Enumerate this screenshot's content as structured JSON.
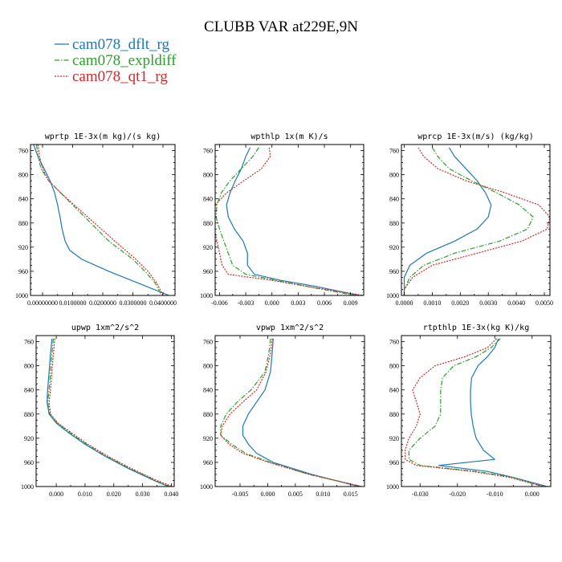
{
  "figure_title": "CLUBB VAR at229E,9N",
  "legend": [
    {
      "name": "cam078_dflt_rg",
      "color": "#1f77b4",
      "dash": "solid"
    },
    {
      "name": "cam078_expldiff",
      "color": "#2ca02c",
      "dash": "dashdot"
    },
    {
      "name": "cam078_qt1_rg",
      "color": "#d62728",
      "dash": "dotted"
    }
  ],
  "chart_data": [
    {
      "type": "line",
      "title": "wprtp  1E-3x(m kg)/(s kg)",
      "xlim": [
        -0.004,
        0.044
      ],
      "ylim": [
        1000,
        750
      ],
      "y_reversed": true,
      "xticks": [
        0,
        0.01,
        0.02,
        0.03,
        0.04
      ],
      "xticklabels": [
        "0.00000000",
        "0.0100000",
        "0.0200000",
        "0.0300000",
        "0.0400000"
      ],
      "yticks": [
        760,
        800,
        840,
        880,
        920,
        960,
        1000
      ],
      "y": [
        750,
        770,
        790,
        810,
        830,
        850,
        870,
        890,
        910,
        925,
        940,
        960,
        980,
        1000
      ],
      "series": [
        {
          "name": "cam078_dflt_rg",
          "values": [
            -0.003,
            -0.0015,
            0.0005,
            0.0025,
            0.004,
            0.005,
            0.0058,
            0.0065,
            0.0075,
            0.009,
            0.013,
            0.022,
            0.032,
            0.042
          ]
        },
        {
          "name": "cam078_expldiff",
          "values": [
            -0.002,
            -0.0015,
            -0.0005,
            0.002,
            0.006,
            0.01,
            0.014,
            0.018,
            0.022,
            0.026,
            0.03,
            0.034,
            0.0375,
            0.0395
          ]
        },
        {
          "name": "cam078_qt1_rg",
          "values": [
            -0.0015,
            -0.001,
            0.0,
            0.002,
            0.006,
            0.0105,
            0.015,
            0.0195,
            0.024,
            0.0275,
            0.031,
            0.035,
            0.038,
            0.04
          ]
        }
      ]
    },
    {
      "type": "line",
      "title": "wpthlp  1x(m K)/s",
      "xlim": [
        -0.0065,
        0.0105
      ],
      "ylim": [
        1000,
        750
      ],
      "y_reversed": true,
      "xticks": [
        -0.006,
        -0.003,
        0,
        0.003,
        0.006,
        0.009
      ],
      "xticklabels": [
        "-0.006",
        "-0.003",
        "0.000",
        "0.003",
        "0.006",
        "0.009"
      ],
      "yticks": [
        760,
        800,
        840,
        880,
        920,
        960,
        1000
      ],
      "y": [
        755,
        770,
        790,
        810,
        830,
        850,
        870,
        890,
        910,
        930,
        950,
        965,
        975,
        985,
        1000
      ],
      "series": [
        {
          "name": "cam078_dflt_rg",
          "values": [
            -0.0025,
            -0.003,
            -0.0035,
            -0.0042,
            -0.0048,
            -0.0052,
            -0.005,
            -0.0043,
            -0.0033,
            -0.0028,
            -0.0028,
            -0.002,
            0.001,
            0.005,
            0.01
          ]
        },
        {
          "name": "cam078_expldiff",
          "values": [
            -0.0015,
            -0.0022,
            -0.0035,
            -0.0048,
            -0.0058,
            -0.0063,
            -0.0064,
            -0.006,
            -0.0055,
            -0.005,
            -0.0045,
            -0.003,
            0.0005,
            0.004,
            0.0095
          ]
        },
        {
          "name": "cam078_qt1_rg",
          "values": [
            -0.0003,
            -0.0002,
            -0.0012,
            -0.0032,
            -0.0052,
            -0.0065,
            -0.0068,
            -0.0066,
            -0.0063,
            -0.006,
            -0.0057,
            -0.005,
            0.0,
            0.004,
            0.0105
          ]
        }
      ]
    },
    {
      "type": "line",
      "title": "wprcp  1E-3x(m/s) (kg/kg)",
      "xlim": [
        -0.0001,
        0.0052
      ],
      "ylim": [
        1000,
        750
      ],
      "y_reversed": true,
      "xticks": [
        0,
        0.001,
        0.002,
        0.003,
        0.004,
        0.005
      ],
      "xticklabels": [
        "0.0000",
        "0.0010",
        "0.0020",
        "0.0030",
        "0.0040",
        "0.0050"
      ],
      "yticks": [
        760,
        800,
        840,
        880,
        920,
        960,
        1000
      ],
      "y": [
        755,
        770,
        790,
        810,
        830,
        850,
        870,
        890,
        910,
        930,
        950,
        970,
        990,
        1000
      ],
      "series": [
        {
          "name": "cam078_dflt_rg",
          "values": [
            0.0016,
            0.0018,
            0.0022,
            0.0026,
            0.0029,
            0.0031,
            0.003,
            0.0026,
            0.0018,
            0.0008,
            0.0002,
            0.0,
            0.0,
            0.0
          ]
        },
        {
          "name": "cam078_expldiff",
          "values": [
            0.001,
            0.0012,
            0.0016,
            0.0024,
            0.0033,
            0.0041,
            0.0046,
            0.0044,
            0.0034,
            0.0018,
            0.0007,
            0.0002,
            0.0,
            0.0
          ]
        },
        {
          "name": "cam078_qt1_rg",
          "values": [
            0.0005,
            0.0007,
            0.0012,
            0.0022,
            0.0036,
            0.0048,
            0.0052,
            0.0051,
            0.0042,
            0.0026,
            0.001,
            0.0003,
            0.0,
            0.0
          ]
        }
      ]
    },
    {
      "type": "line",
      "title": "upwp  1xm^2/s^2",
      "xlim": [
        -0.007,
        0.041
      ],
      "ylim": [
        1000,
        750
      ],
      "y_reversed": true,
      "xticks": [
        0,
        0.01,
        0.02,
        0.03,
        0.04
      ],
      "xticklabels": [
        "0.000",
        "0.010",
        "0.020",
        "0.030",
        "0.040"
      ],
      "yticks": [
        760,
        800,
        840,
        880,
        920,
        960,
        1000
      ],
      "y": [
        755,
        780,
        810,
        840,
        860,
        880,
        895,
        910,
        930,
        950,
        970,
        990,
        1000
      ],
      "series": [
        {
          "name": "cam078_dflt_rg",
          "values": [
            -0.0015,
            -0.002,
            -0.0025,
            -0.003,
            -0.0032,
            -0.0025,
            0.0,
            0.004,
            0.01,
            0.017,
            0.025,
            0.034,
            0.039
          ]
        },
        {
          "name": "cam078_expldiff",
          "values": [
            -0.001,
            -0.0015,
            -0.002,
            -0.0025,
            -0.003,
            -0.0022,
            0.0003,
            0.0045,
            0.0105,
            0.0175,
            0.0255,
            0.0345,
            0.0395
          ]
        },
        {
          "name": "cam078_qt1_rg",
          "values": [
            -0.0005,
            -0.001,
            -0.0015,
            -0.002,
            -0.0025,
            -0.002,
            0.0006,
            0.005,
            0.011,
            0.018,
            0.026,
            0.035,
            0.0405
          ]
        }
      ]
    },
    {
      "type": "line",
      "title": "vpwp  1xm^2/s^2",
      "xlim": [
        -0.0095,
        0.0175
      ],
      "ylim": [
        1000,
        750
      ],
      "y_reversed": true,
      "xticks": [
        -0.005,
        0,
        0.005,
        0.01,
        0.015
      ],
      "xticklabels": [
        "-0.005",
        "0.000",
        "0.005",
        "0.010",
        "0.015"
      ],
      "yticks": [
        760,
        800,
        840,
        880,
        920,
        960,
        1000
      ],
      "y": [
        755,
        780,
        810,
        840,
        860,
        880,
        900,
        915,
        930,
        945,
        960,
        980,
        1000
      ],
      "series": [
        {
          "name": "cam078_dflt_rg",
          "values": [
            0.001,
            0.0008,
            0.0005,
            -0.0005,
            -0.002,
            -0.0035,
            -0.0045,
            -0.0045,
            -0.0035,
            -0.002,
            0.001,
            0.008,
            0.0165
          ]
        },
        {
          "name": "cam078_expldiff",
          "values": [
            0.0005,
            0.0002,
            -0.0005,
            -0.003,
            -0.0055,
            -0.0075,
            -0.0085,
            -0.0085,
            -0.0065,
            -0.004,
            0.0005,
            0.0075,
            0.017
          ]
        },
        {
          "name": "cam078_qt1_rg",
          "values": [
            0.0008,
            0.0005,
            -0.0003,
            -0.002,
            -0.0045,
            -0.0068,
            -0.0082,
            -0.0085,
            -0.007,
            -0.0045,
            0.0002,
            0.0075,
            0.017
          ]
        }
      ]
    },
    {
      "type": "line",
      "title": "rtpthlp  1E-3x(kg K)/kg",
      "xlim": [
        -0.035,
        0.005
      ],
      "ylim": [
        1000,
        750
      ],
      "y_reversed": true,
      "xticks": [
        -0.03,
        -0.02,
        -0.01,
        0
      ],
      "xticklabels": [
        "-0.030",
        "-0.020",
        "-0.010",
        "0.000"
      ],
      "yticks": [
        760,
        800,
        840,
        880,
        920,
        960,
        1000
      ],
      "y": [
        755,
        770,
        785,
        800,
        820,
        840,
        860,
        880,
        900,
        920,
        940,
        955,
        965,
        975,
        985,
        1000
      ],
      "series": [
        {
          "name": "cam078_dflt_rg",
          "values": [
            -0.009,
            -0.01,
            -0.012,
            -0.0145,
            -0.0162,
            -0.0165,
            -0.0165,
            -0.0163,
            -0.0158,
            -0.015,
            -0.013,
            -0.01,
            -0.025,
            -0.012,
            -0.005,
            0.004
          ]
        },
        {
          "name": "cam078_expldiff",
          "values": [
            -0.0085,
            -0.011,
            -0.015,
            -0.021,
            -0.024,
            -0.0245,
            -0.0245,
            -0.0245,
            -0.026,
            -0.03,
            -0.033,
            -0.033,
            -0.03,
            -0.015,
            -0.005,
            0.003
          ]
        },
        {
          "name": "cam078_qt1_rg",
          "values": [
            -0.0095,
            -0.012,
            -0.018,
            -0.026,
            -0.03,
            -0.032,
            -0.031,
            -0.03,
            -0.031,
            -0.033,
            -0.034,
            -0.034,
            -0.031,
            -0.016,
            -0.006,
            0.003
          ]
        }
      ]
    }
  ]
}
